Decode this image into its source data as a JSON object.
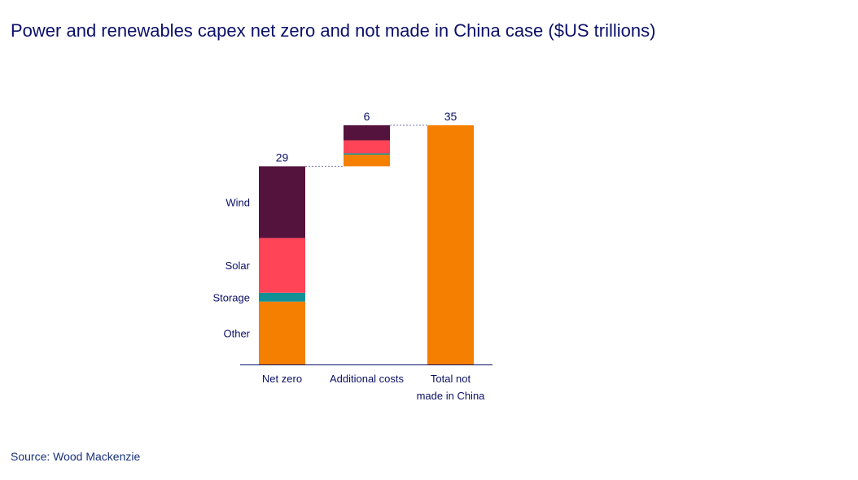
{
  "title": "Power and renewables capex net zero and not made in China case ($US trillions)",
  "source": "Source: Wood Mackenzie",
  "chart_data": {
    "type": "waterfall-stacked-bar",
    "title": "Power and renewables capex net zero and not made in China case ($US trillions)",
    "categories": [
      [
        "Net zero"
      ],
      [
        "Additional costs"
      ],
      [
        "Total not",
        "made in China"
      ]
    ],
    "totals": [
      29,
      6,
      35
    ],
    "segment_labels": [
      "Other",
      "Storage",
      "Solar",
      "Wind"
    ],
    "colors": {
      "Other": "#f57f00",
      "Storage": "#0f9196",
      "Solar": "#ff4458",
      "Wind": "#54133c",
      "axis": "#0b1068"
    },
    "bars": [
      {
        "category": "Net zero",
        "base": 0,
        "segments": {
          "Other": 9.2,
          "Storage": 1.3,
          "Solar": 8.0,
          "Wind": 10.5
        }
      },
      {
        "category": "Additional costs",
        "base": 29,
        "segments": {
          "Other": 1.7,
          "Storage": 0.2,
          "Solar": 1.9,
          "Wind": 2.2
        }
      },
      {
        "category": "Total not made in China",
        "base": 0,
        "segments": {
          "Other": 35
        }
      }
    ],
    "ylim": [
      0,
      35
    ]
  }
}
